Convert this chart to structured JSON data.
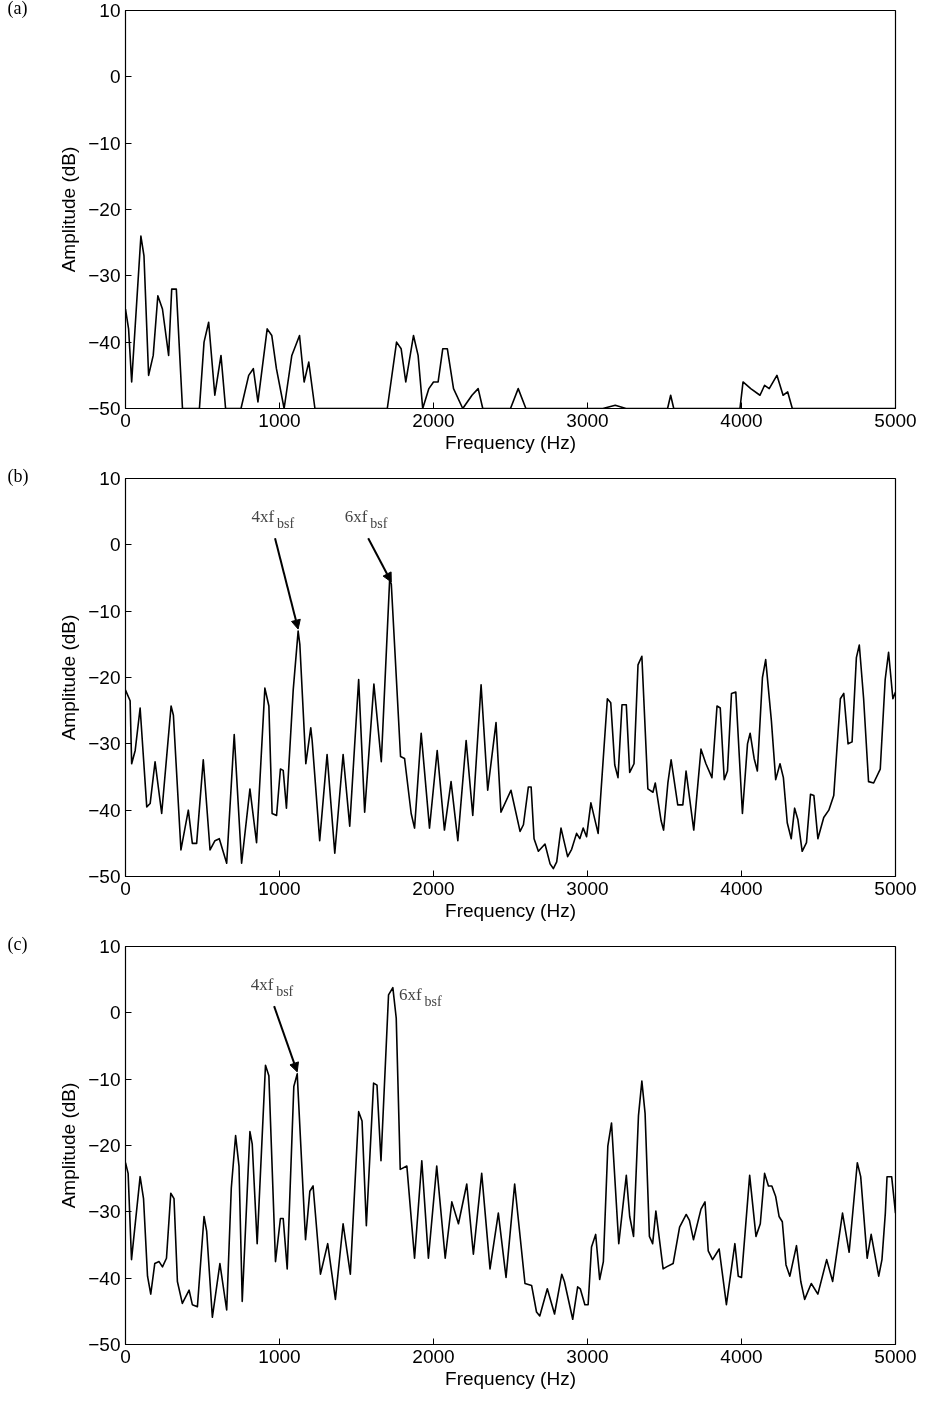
{
  "chart_data": [
    {
      "type": "line",
      "title": "(a)",
      "xlabel": "Frequency (Hz)",
      "ylabel": "Amplitude (dB)",
      "xlim": [
        0,
        5000
      ],
      "ylim": [
        -50,
        10
      ],
      "xticks": [
        0,
        1000,
        2000,
        3000,
        4000,
        5000
      ],
      "yticks": [
        -50,
        -40,
        -30,
        -20,
        -10,
        0,
        10
      ],
      "grid": false,
      "line_style": "solid",
      "marker": "none",
      "series": [
        {
          "color": "#000000",
          "x": [
            0,
            20,
            40,
            70,
            100,
            120,
            150,
            180,
            210,
            240,
            280,
            300,
            330,
            370,
            480,
            510,
            540,
            580,
            620,
            650,
            750,
            800,
            830,
            860,
            920,
            950,
            980,
            1030,
            1080,
            1130,
            1160,
            1190,
            1230,
            1700,
            1760,
            1790,
            1820,
            1870,
            1900,
            1930,
            1970,
            2000,
            2030,
            2060,
            2090,
            2130,
            2190,
            2250,
            2290,
            2320,
            2500,
            2550,
            2600,
            3100,
            3180,
            3250,
            3520,
            3540,
            3560,
            3990,
            4010,
            4060,
            4120,
            4150,
            4180,
            4230,
            4270,
            4300,
            4330,
            5000
          ],
          "values": [
            -35,
            -38,
            -46,
            -35,
            -24,
            -27,
            -45,
            -42,
            -33,
            -35,
            -42,
            -32,
            -32,
            -50,
            -50,
            -40,
            -37,
            -48,
            -42,
            -50,
            -50,
            -45,
            -44,
            -49,
            -38,
            -39,
            -44,
            -50,
            -42,
            -39,
            -46,
            -43,
            -50,
            -50,
            -40,
            -41,
            -46,
            -39,
            -42,
            -50,
            -47,
            -46,
            -46,
            -41,
            -41,
            -47,
            -50,
            -48,
            -47,
            -50,
            -50,
            -47,
            -50,
            -50,
            -49.5,
            -50,
            -50,
            -48,
            -50,
            -50,
            -46,
            -47,
            -48,
            -46.5,
            -47,
            -45,
            -48,
            -47.5,
            -50,
            -50
          ]
        }
      ]
    },
    {
      "type": "line",
      "title": "(b)",
      "xlabel": "Frequency (Hz)",
      "ylabel": "Amplitude (dB)",
      "xlim": [
        0,
        5000
      ],
      "ylim": [
        -50,
        10
      ],
      "xticks": [
        0,
        1000,
        2000,
        3000,
        4000,
        5000
      ],
      "yticks": [
        -50,
        -40,
        -30,
        -20,
        -10,
        0,
        10
      ],
      "grid": false,
      "line_style": "solid",
      "marker": "none",
      "annotations": [
        {
          "text": "4xf$_{bsf}$",
          "x": 1121,
          "y": -13
        },
        {
          "text": "6xf$_{bsf}$",
          "x": 1726,
          "y": -5.9
        }
      ],
      "series": [
        {
          "color": "#000000",
          "x": [
            0,
            30,
            40,
            63,
            95,
            138,
            160,
            192,
            235,
            296,
            311,
            360,
            408,
            434,
            462,
            505,
            549,
            581,
            609,
            657,
            706,
            754,
            808,
            851,
            905,
            931,
            952,
            981,
            1006,
            1024,
            1045,
            1089,
            1121,
            1132,
            1171,
            1203,
            1212,
            1261,
            1309,
            1359,
            1413,
            1456,
            1514,
            1553,
            1613,
            1661,
            1715,
            1726,
            1786,
            1812,
            1855,
            1877,
            1920,
            1974,
            2024,
            2071,
            2114,
            2158,
            2212,
            2255,
            2309,
            2352,
            2406,
            2438,
            2503,
            2562,
            2584,
            2616,
            2634,
            2653,
            2681,
            2724,
            2757,
            2778,
            2800,
            2828,
            2871,
            2897,
            2929,
            2950,
            2972,
            2994,
            3022,
            3069,
            3129,
            3151,
            3177,
            3198,
            3224,
            3252,
            3274,
            3302,
            3328,
            3353,
            3392,
            3425,
            3440,
            3478,
            3494,
            3522,
            3543,
            3586,
            3619,
            3640,
            3690,
            3737,
            3769,
            3808,
            3841,
            3862,
            3888,
            3909,
            3935,
            3963,
            4006,
            4039,
            4056,
            4082,
            4103,
            4136,
            4157,
            4194,
            4222,
            4250,
            4272,
            4297,
            4323,
            4345,
            4366,
            4394,
            4422,
            4448,
            4470,
            4496,
            4534,
            4567,
            4599,
            4642,
            4664,
            4692,
            4718,
            4746,
            4765,
            4793,
            4825,
            4858,
            4901,
            4933,
            4955,
            4983,
            5000
          ],
          "values": [
            -21.9,
            -23.5,
            -33,
            -31,
            -24.6,
            -39.5,
            -39,
            -32.7,
            -40.5,
            -24.3,
            -25.7,
            -46,
            -40,
            -45,
            -45,
            -32.4,
            -46,
            -44.6,
            -44.3,
            -48,
            -28.6,
            -48,
            -36.8,
            -44.9,
            -21.6,
            -24.3,
            -40.5,
            -40.8,
            -33.8,
            -34,
            -39.7,
            -21.9,
            -13,
            -15,
            -33,
            -27.6,
            -29.5,
            -44.6,
            -31.6,
            -46.5,
            -31.6,
            -42.4,
            -20.3,
            -40.3,
            -21,
            -32.7,
            -5.4,
            -5.9,
            -31.9,
            -32.2,
            -40.5,
            -42.7,
            -28.4,
            -42.7,
            -31,
            -43,
            -35.7,
            -44.6,
            -29.5,
            -40.8,
            -21.1,
            -37,
            -26.8,
            -40.3,
            -37,
            -43.2,
            -42.2,
            -36.5,
            -36.5,
            -44.3,
            -46.2,
            -45.1,
            -48.1,
            -48.8,
            -47.8,
            -42.7,
            -47,
            -45.9,
            -43.5,
            -44.3,
            -42.7,
            -44,
            -38.9,
            -43.5,
            -23.2,
            -23.8,
            -33.2,
            -35.1,
            -24.1,
            -24.1,
            -34.3,
            -33,
            -18.1,
            -16.8,
            -36.8,
            -37.3,
            -35.9,
            -41.6,
            -43,
            -35.9,
            -32.4,
            -39.2,
            -39.2,
            -34.1,
            -43,
            -30.8,
            -33,
            -35.1,
            -24.3,
            -24.6,
            -35.4,
            -34.1,
            -22.4,
            -22.2,
            -40.5,
            -30,
            -28.4,
            -32.2,
            -34.1,
            -20,
            -17.3,
            -26.5,
            -35.4,
            -33,
            -35.1,
            -41.9,
            -44.3,
            -39.7,
            -41.4,
            -46.2,
            -44.9,
            -37.6,
            -37.8,
            -44.3,
            -41.1,
            -40,
            -37.8,
            -23.2,
            -22.4,
            -30,
            -29.7,
            -17,
            -15.1,
            -23.2,
            -35.7,
            -35.9,
            -33.8,
            -20.3,
            -16.2,
            -23.2,
            -22.2
          ]
        }
      ]
    },
    {
      "type": "line",
      "title": "(c)",
      "xlabel": "Frequency (Hz)",
      "ylabel": "Amplitude (dB)",
      "xlim": [
        0,
        5000
      ],
      "ylim": [
        -50,
        10
      ],
      "xticks": [
        0,
        1000,
        2000,
        3000,
        4000,
        5000
      ],
      "yticks": [
        -50,
        -40,
        -30,
        -20,
        -10,
        0,
        10
      ],
      "grid": false,
      "line_style": "solid",
      "marker": "none",
      "annotations": [
        {
          "text": "4xf$_{bsf}$",
          "x": 1115,
          "y": -9.2
        },
        {
          "text": "6xf$_{bsf}$",
          "x": 1736,
          "y": 3.8
        }
      ],
      "series": [
        {
          "color": "#000000",
          "x": [
            0,
            17,
            39,
            95,
            117,
            143,
            164,
            190,
            218,
            240,
            266,
            294,
            315,
            337,
            369,
            413,
            434,
            467,
            510,
            527,
            564,
            613,
            657,
            687,
            715,
            737,
            758,
            808,
            823,
            855,
            909,
            931,
            974,
            1006,
            1024,
            1050,
            1093,
            1115,
            1169,
            1197,
            1218,
            1266,
            1313,
            1363,
            1413,
            1460,
            1514,
            1536,
            1564,
            1611,
            1633,
            1659,
            1708,
            1736,
            1758,
            1784,
            1827,
            1877,
            1924,
            1967,
            2021,
            2076,
            2119,
            2162,
            2216,
            2259,
            2313,
            2367,
            2421,
            2471,
            2527,
            2594,
            2637,
            2669,
            2690,
            2739,
            2786,
            2833,
            2850,
            2904,
            2936,
            2953,
            2983,
            3004,
            3026,
            3053,
            3079,
            3103,
            3132,
            3156,
            3203,
            3252,
            3274,
            3299,
            3331,
            3353,
            3374,
            3402,
            3423,
            3444,
            3491,
            3513,
            3556,
            3598,
            3641,
            3662,
            3688,
            3737,
            3763,
            3784,
            3812,
            3855,
            3902,
            3957,
            3979,
            4000,
            4053,
            4094,
            4122,
            4150,
            4175,
            4197,
            4222,
            4244,
            4265,
            4289,
            4314,
            4357,
            4385,
            4410,
            4453,
            4496,
            4553,
            4592,
            4656,
            4699,
            4752,
            4774,
            4816,
            4842,
            4891,
            4912,
            4934,
            4945,
            4975,
            5000
          ],
          "values": [
            -22.6,
            -24.2,
            -37.2,
            -24.7,
            -28,
            -39.7,
            -42.4,
            -37.8,
            -37.5,
            -38.3,
            -37,
            -27.2,
            -28,
            -40.5,
            -43.8,
            -41.8,
            -44,
            -44.3,
            -30.7,
            -32.9,
            -45.9,
            -37.8,
            -44.8,
            -26.4,
            -18.5,
            -23.1,
            -43.5,
            -17.9,
            -19.8,
            -34.8,
            -7.9,
            -9.5,
            -37.5,
            -31,
            -31,
            -38.6,
            -11.1,
            -9.2,
            -34.2,
            -26.9,
            -26.1,
            -39.4,
            -34.8,
            -43.2,
            -31.8,
            -39.4,
            -14.9,
            -16.3,
            -32.1,
            -10.6,
            -10.9,
            -22.3,
            2.7,
            3.8,
            -0.8,
            -23.6,
            -23.1,
            -37,
            -22.3,
            -37,
            -23.1,
            -37,
            -28.5,
            -31.8,
            -25.8,
            -36.4,
            -24.2,
            -38.6,
            -30.2,
            -39.9,
            -25.8,
            -40.8,
            -41.1,
            -45.1,
            -45.7,
            -41.6,
            -45.4,
            -39.4,
            -40.5,
            -46.2,
            -41.3,
            -41.6,
            -44,
            -44,
            -35.3,
            -33.4,
            -40.2,
            -37.5,
            -20.1,
            -16.6,
            -34.8,
            -24.5,
            -30.7,
            -33.7,
            -15.5,
            -10.3,
            -15.2,
            -33.7,
            -34.8,
            -29.9,
            -38.6,
            -38.3,
            -37.8,
            -32.3,
            -30.4,
            -31.3,
            -34.2,
            -29.6,
            -28.5,
            -35.9,
            -37.2,
            -35.6,
            -44,
            -34.8,
            -39.7,
            -39.9,
            -24.5,
            -33.7,
            -31.8,
            -24.2,
            -26.1,
            -26.1,
            -27.7,
            -30.7,
            -31.5,
            -38,
            -39.7,
            -35.1,
            -40.5,
            -43.2,
            -40.8,
            -42.4,
            -37.2,
            -40.5,
            -30.2,
            -36.1,
            -22.6,
            -24.7,
            -37,
            -33.4,
            -39.7,
            -37.2,
            -30.2,
            -24.7,
            -24.7,
            -30.2
          ]
        }
      ]
    }
  ]
}
